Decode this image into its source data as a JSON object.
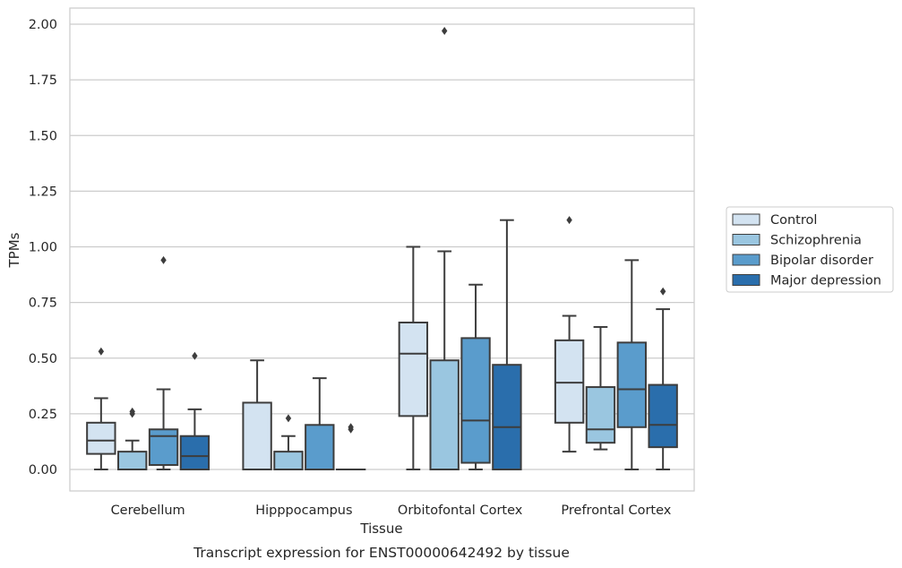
{
  "chart_data": {
    "type": "box",
    "caption": "Transcript expression for ENST00000642492 by tissue",
    "xlabel": "Tissue",
    "ylabel": "TPMs",
    "ylim": [
      -0.1,
      2.07
    ],
    "yticks": [
      0.0,
      0.25,
      0.5,
      0.75,
      1.0,
      1.25,
      1.5,
      1.75,
      2.0
    ],
    "ytick_labels": [
      "0.00",
      "0.25",
      "0.50",
      "0.75",
      "1.00",
      "1.25",
      "1.50",
      "1.75",
      "2.00"
    ],
    "grid": "horizontal",
    "legend_position": "right",
    "categories": [
      "Cerebellum",
      "Hipppocampus",
      "Orbitofontal Cortex",
      "Prefrontal Cortex"
    ],
    "series": [
      {
        "name": "Control",
        "color": "#d3e3f1",
        "boxes": [
          {
            "whislo": 0.0,
            "q1": 0.07,
            "med": 0.13,
            "q3": 0.21,
            "whishi": 0.32,
            "fliers": [
              0.53
            ]
          },
          {
            "whislo": 0.0,
            "q1": 0.0,
            "med": 0.0,
            "q3": 0.3,
            "whishi": 0.49,
            "fliers": []
          },
          {
            "whislo": 0.0,
            "q1": 0.24,
            "med": 0.52,
            "q3": 0.66,
            "whishi": 1.0,
            "fliers": []
          },
          {
            "whislo": 0.08,
            "q1": 0.21,
            "med": 0.39,
            "q3": 0.58,
            "whishi": 0.69,
            "fliers": [
              1.12
            ]
          }
        ]
      },
      {
        "name": "Schizophrenia",
        "color": "#9ac6e0",
        "boxes": [
          {
            "whislo": 0.0,
            "q1": 0.0,
            "med": 0.0,
            "q3": 0.08,
            "whishi": 0.13,
            "fliers": [
              0.25,
              0.26
            ]
          },
          {
            "whislo": 0.0,
            "q1": 0.0,
            "med": 0.0,
            "q3": 0.08,
            "whishi": 0.15,
            "fliers": [
              0.23
            ]
          },
          {
            "whislo": 0.0,
            "q1": 0.0,
            "med": 0.0,
            "q3": 0.49,
            "whishi": 0.98,
            "fliers": [
              1.97
            ]
          },
          {
            "whislo": 0.09,
            "q1": 0.12,
            "med": 0.18,
            "q3": 0.37,
            "whishi": 0.64,
            "fliers": []
          }
        ]
      },
      {
        "name": "Bipolar disorder",
        "color": "#5a9ccc",
        "boxes": [
          {
            "whislo": 0.0,
            "q1": 0.02,
            "med": 0.15,
            "q3": 0.18,
            "whishi": 0.36,
            "fliers": [
              0.94
            ]
          },
          {
            "whislo": 0.0,
            "q1": 0.0,
            "med": 0.0,
            "q3": 0.2,
            "whishi": 0.41,
            "fliers": []
          },
          {
            "whislo": 0.0,
            "q1": 0.03,
            "med": 0.22,
            "q3": 0.59,
            "whishi": 0.83,
            "fliers": []
          },
          {
            "whislo": 0.0,
            "q1": 0.19,
            "med": 0.36,
            "q3": 0.57,
            "whishi": 0.94,
            "fliers": []
          }
        ]
      },
      {
        "name": "Major depression",
        "color": "#2a6eac",
        "boxes": [
          {
            "whislo": 0.0,
            "q1": 0.0,
            "med": 0.06,
            "q3": 0.15,
            "whishi": 0.27,
            "fliers": [
              0.51
            ]
          },
          {
            "whislo": 0.0,
            "q1": 0.0,
            "med": 0.0,
            "q3": 0.0,
            "whishi": 0.0,
            "fliers": [
              0.18,
              0.19
            ]
          },
          {
            "whislo": 0.0,
            "q1": 0.0,
            "med": 0.19,
            "q3": 0.47,
            "whishi": 1.12,
            "fliers": []
          },
          {
            "whislo": 0.0,
            "q1": 0.1,
            "med": 0.2,
            "q3": 0.38,
            "whishi": 0.72,
            "fliers": [
              0.8
            ]
          }
        ]
      }
    ]
  }
}
